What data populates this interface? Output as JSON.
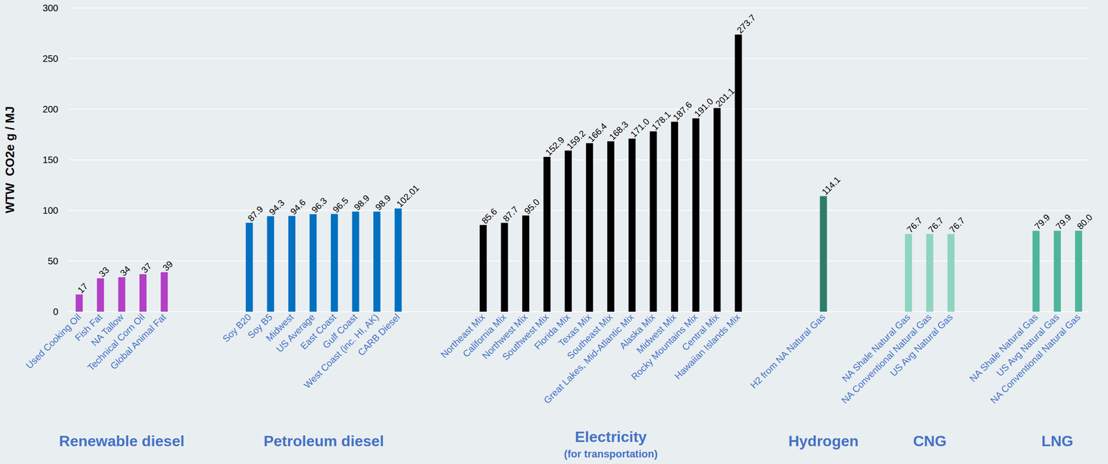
{
  "chart_data": {
    "type": "bar",
    "y_label": "WTW  CO2e g / MJ",
    "ylim": [
      0,
      300
    ],
    "yticks": [
      0,
      50,
      100,
      150,
      200,
      250,
      300
    ],
    "grid": true,
    "data_labels": true,
    "categories": [
      "Used Cooking Oil",
      "Fish Fat",
      "NA Tallow",
      "Technical Corn Oil",
      "Global Animal Fat",
      null,
      null,
      null,
      "Soy B20",
      "Soy B5",
      "Midwest",
      "US Average",
      "East Coast",
      "Gulf Coast",
      "West Coast (inc. HI, AK)",
      "CARB Diesel",
      null,
      null,
      null,
      "Northeast Mix",
      "California Mix",
      "Northwest Mix",
      "Southwest Mix",
      "Florida Mix",
      "Texas Mix",
      "Southeast Mix",
      "Great Lakes, Mid-Atlantic Mix",
      "Alaska Mix",
      "Midwest Mix",
      "Rocky Mountains Mix",
      "Central Mix",
      "Hawaiian Islands Mix",
      null,
      null,
      null,
      "H2 from NA Natural Gas",
      null,
      null,
      null,
      "NA Shale Natural Gas",
      "NA Conventional Natural Gas",
      "US Avg Natural Gas",
      null,
      null,
      null,
      "NA Shale Natural Gas",
      "US Avg Natural Gas",
      "NA Conventional Natural Gas"
    ],
    "series": [
      {
        "name": "Renewable diesel",
        "color": "#b23fc6",
        "values": [
          17,
          33,
          34,
          37,
          39,
          null,
          null,
          null,
          null,
          null,
          null,
          null,
          null,
          null,
          null,
          null,
          null,
          null,
          null,
          null,
          null,
          null,
          null,
          null,
          null,
          null,
          null,
          null,
          null,
          null,
          null,
          null,
          null,
          null,
          null,
          null,
          null,
          null,
          null,
          null,
          null,
          null,
          null,
          null,
          null,
          null,
          null,
          null
        ],
        "value_labels": [
          "17",
          "33",
          "34",
          "37",
          "39",
          null,
          null,
          null,
          null,
          null,
          null,
          null,
          null,
          null,
          null,
          null,
          null,
          null,
          null,
          null,
          null,
          null,
          null,
          null,
          null,
          null,
          null,
          null,
          null,
          null,
          null,
          null,
          null,
          null,
          null,
          null,
          null,
          null,
          null,
          null,
          null,
          null,
          null,
          null,
          null,
          null,
          null,
          null
        ]
      },
      {
        "name": "Petroleum diesel",
        "color": "#0070c0",
        "values": [
          null,
          null,
          null,
          null,
          null,
          null,
          null,
          null,
          87.9,
          94.3,
          94.6,
          96.3,
          96.5,
          98.9,
          98.9,
          102.01,
          null,
          null,
          null,
          null,
          null,
          null,
          null,
          null,
          null,
          null,
          null,
          null,
          null,
          null,
          null,
          null,
          null,
          null,
          null,
          null,
          null,
          null,
          null,
          null,
          null,
          null,
          null,
          null,
          null,
          null,
          null,
          null
        ],
        "value_labels": [
          null,
          null,
          null,
          null,
          null,
          null,
          null,
          null,
          "87.9",
          "94.3",
          "94.6",
          "96.3",
          "96.5",
          "98.9",
          "98.9",
          "102.01",
          null,
          null,
          null,
          null,
          null,
          null,
          null,
          null,
          null,
          null,
          null,
          null,
          null,
          null,
          null,
          null,
          null,
          null,
          null,
          null,
          null,
          null,
          null,
          null,
          null,
          null,
          null,
          null,
          null,
          null,
          null,
          null
        ]
      },
      {
        "name": "Electricity",
        "subtitle": "(for transportation)",
        "color": "#000000",
        "values": [
          null,
          null,
          null,
          null,
          null,
          null,
          null,
          null,
          null,
          null,
          null,
          null,
          null,
          null,
          null,
          null,
          null,
          null,
          null,
          85.6,
          87.7,
          95.0,
          152.9,
          159.2,
          166.4,
          168.3,
          171.0,
          178.1,
          187.6,
          191.0,
          201.1,
          273.7,
          null,
          null,
          null,
          null,
          null,
          null,
          null,
          null,
          null,
          null,
          null,
          null,
          null,
          null,
          null,
          null
        ],
        "value_labels": [
          null,
          null,
          null,
          null,
          null,
          null,
          null,
          null,
          null,
          null,
          null,
          null,
          null,
          null,
          null,
          null,
          null,
          null,
          null,
          "85.6",
          "87.7",
          "95.0",
          "152.9",
          "159.2",
          "166.4",
          "168.3",
          "171.0",
          "178.1",
          "187.6",
          "191.0",
          "201.1",
          "273.7",
          null,
          null,
          null,
          null,
          null,
          null,
          null,
          null,
          null,
          null,
          null,
          null,
          null,
          null,
          null,
          null
        ]
      },
      {
        "name": "Hydrogen",
        "color": "#2e7d6b",
        "values": [
          null,
          null,
          null,
          null,
          null,
          null,
          null,
          null,
          null,
          null,
          null,
          null,
          null,
          null,
          null,
          null,
          null,
          null,
          null,
          null,
          null,
          null,
          null,
          null,
          null,
          null,
          null,
          null,
          null,
          null,
          null,
          null,
          null,
          null,
          null,
          114.1,
          null,
          null,
          null,
          null,
          null,
          null,
          null,
          null,
          null,
          null,
          null,
          null
        ],
        "value_labels": [
          null,
          null,
          null,
          null,
          null,
          null,
          null,
          null,
          null,
          null,
          null,
          null,
          null,
          null,
          null,
          null,
          null,
          null,
          null,
          null,
          null,
          null,
          null,
          null,
          null,
          null,
          null,
          null,
          null,
          null,
          null,
          null,
          null,
          null,
          null,
          "114.1",
          null,
          null,
          null,
          null,
          null,
          null,
          null,
          null,
          null,
          null,
          null,
          null
        ]
      },
      {
        "name": "CNG",
        "color": "#8fd4c1",
        "values": [
          null,
          null,
          null,
          null,
          null,
          null,
          null,
          null,
          null,
          null,
          null,
          null,
          null,
          null,
          null,
          null,
          null,
          null,
          null,
          null,
          null,
          null,
          null,
          null,
          null,
          null,
          null,
          null,
          null,
          null,
          null,
          null,
          null,
          null,
          null,
          null,
          null,
          null,
          null,
          76.7,
          76.7,
          76.7,
          null,
          null,
          null,
          null,
          null,
          null
        ],
        "value_labels": [
          null,
          null,
          null,
          null,
          null,
          null,
          null,
          null,
          null,
          null,
          null,
          null,
          null,
          null,
          null,
          null,
          null,
          null,
          null,
          null,
          null,
          null,
          null,
          null,
          null,
          null,
          null,
          null,
          null,
          null,
          null,
          null,
          null,
          null,
          null,
          null,
          null,
          null,
          null,
          "76.7",
          "76.7",
          "76.7",
          null,
          null,
          null,
          null,
          null,
          null
        ]
      },
      {
        "name": "LNG",
        "color": "#4cb59b",
        "values": [
          null,
          null,
          null,
          null,
          null,
          null,
          null,
          null,
          null,
          null,
          null,
          null,
          null,
          null,
          null,
          null,
          null,
          null,
          null,
          null,
          null,
          null,
          null,
          null,
          null,
          null,
          null,
          null,
          null,
          null,
          null,
          null,
          null,
          null,
          null,
          null,
          null,
          null,
          null,
          null,
          null,
          null,
          null,
          null,
          null,
          79.9,
          79.9,
          80.0
        ],
        "value_labels": [
          null,
          null,
          null,
          null,
          null,
          null,
          null,
          null,
          null,
          null,
          null,
          null,
          null,
          null,
          null,
          null,
          null,
          null,
          null,
          null,
          null,
          null,
          null,
          null,
          null,
          null,
          null,
          null,
          null,
          null,
          null,
          null,
          null,
          null,
          null,
          null,
          null,
          null,
          null,
          null,
          null,
          null,
          null,
          null,
          null,
          "79.9",
          "79.9",
          "80.0"
        ]
      }
    ]
  }
}
